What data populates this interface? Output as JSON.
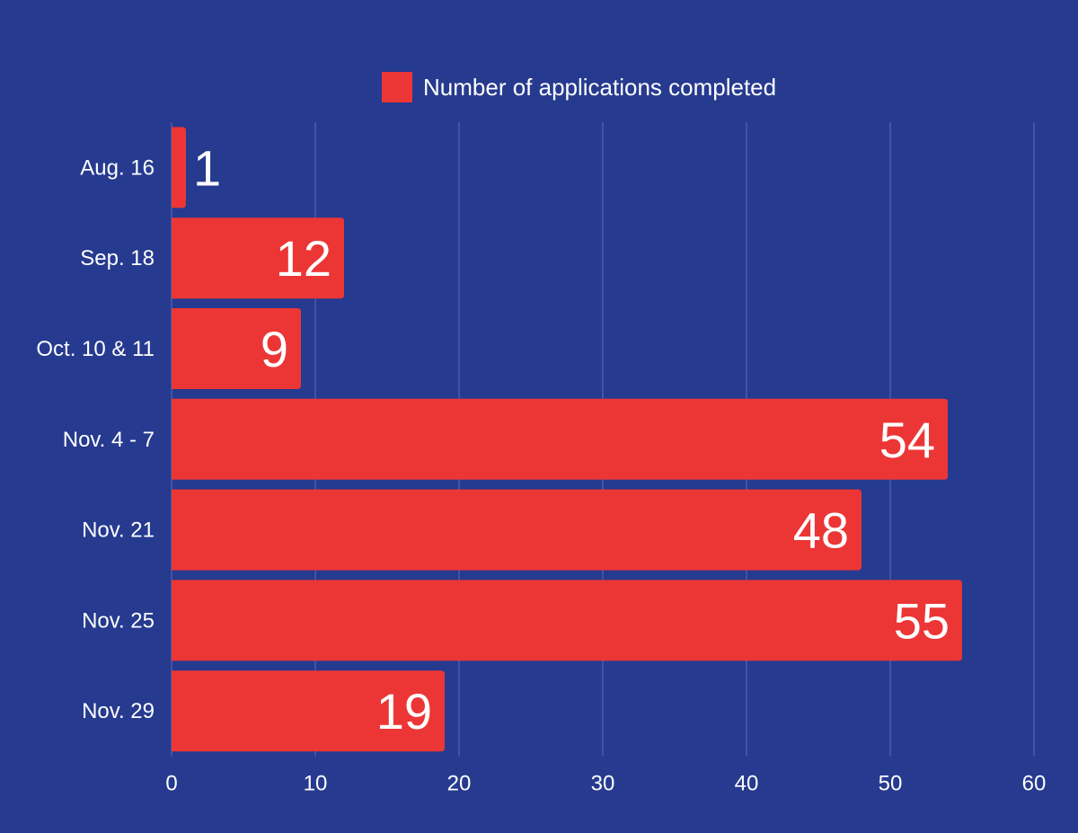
{
  "colors": {
    "background": "#263a8f",
    "bar": "#ec3636",
    "text": "#ffffff",
    "grid": "#5f6fb0"
  },
  "legend": {
    "label": "Number of applications completed"
  },
  "chart_data": {
    "type": "bar",
    "orientation": "horizontal",
    "categories": [
      "Aug. 16",
      "Sep. 18",
      "Oct. 10 & 11",
      "Nov. 4 - 7",
      "Nov. 21",
      "Nov. 25",
      "Nov. 29"
    ],
    "series": [
      {
        "name": "Number of applications completed",
        "values": [
          1,
          12,
          9,
          54,
          48,
          55,
          19
        ]
      }
    ],
    "x_ticks": [
      0,
      10,
      20,
      30,
      40,
      50,
      60
    ],
    "xlim": [
      0,
      60
    ],
    "title": "",
    "xlabel": "",
    "ylabel": "",
    "grid": true,
    "legend_position": "top"
  }
}
